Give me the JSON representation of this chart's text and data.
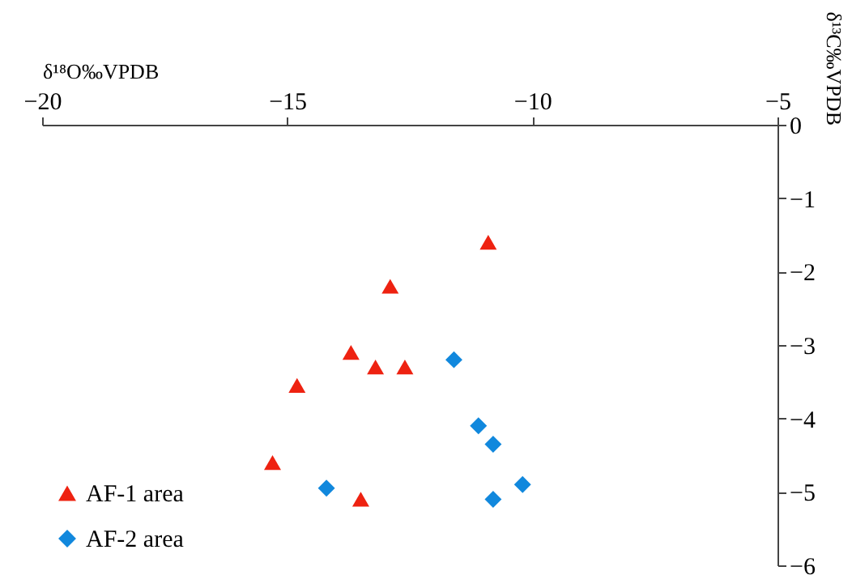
{
  "chart_data": {
    "type": "scatter",
    "xlabel": "δ¹⁸O‰VPDB",
    "ylabel": "δ¹³C‰VPDB",
    "xlim": [
      -20,
      -5
    ],
    "xticks": [
      -20,
      -15,
      -10,
      -5
    ],
    "ylim": [
      -6,
      0
    ],
    "yticks": [
      -6,
      -5,
      -4,
      -3,
      -2,
      -1,
      0
    ],
    "grid": false,
    "legend": "bottom left",
    "series": [
      {
        "name": "AF-1 area",
        "color": "#ee2211",
        "marker": "triangle",
        "x": [
          -10.9,
          -12.9,
          -13.7,
          -13.2,
          -12.6,
          -14.8,
          -15.3,
          -13.5
        ],
        "values": [
          -1.6,
          -2.2,
          -3.1,
          -3.3,
          -3.3,
          -3.55,
          -4.6,
          -5.1
        ]
      },
      {
        "name": "AF-2 area",
        "color": "#1188dd",
        "marker": "diamond",
        "x": [
          -11.6,
          -11.1,
          -10.8,
          -10.2,
          -10.8,
          -14.2
        ],
        "values": [
          -3.2,
          -4.1,
          -4.35,
          -4.9,
          -5.1,
          -4.95
        ]
      }
    ]
  }
}
